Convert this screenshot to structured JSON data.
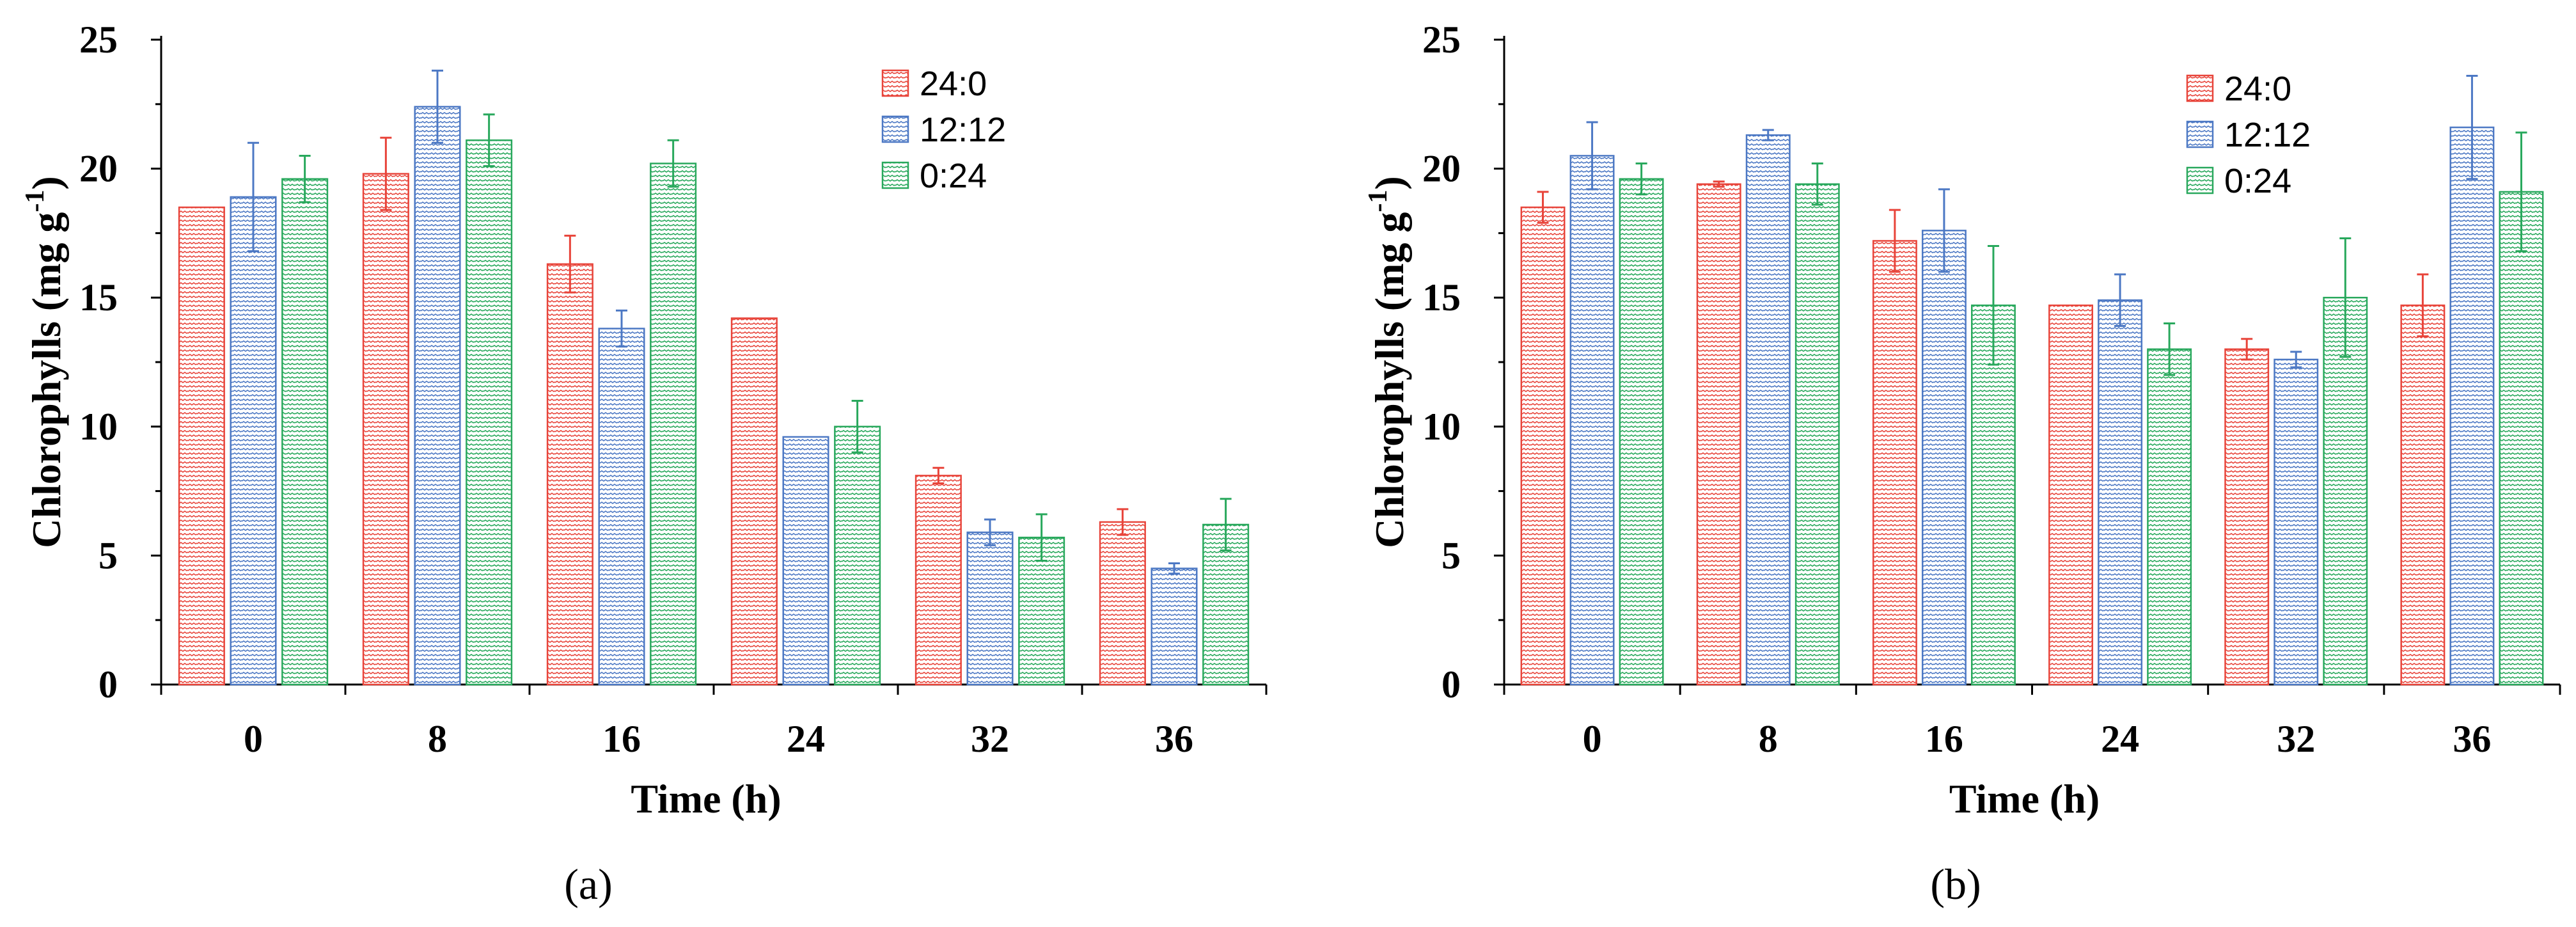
{
  "colors": {
    "24:0": "#e8443a",
    "12:12": "#4c78c4",
    "0:24": "#28a85c"
  },
  "chart_data": [
    {
      "type": "bar",
      "panel_label": "(a)",
      "xlabel": "Time (h)",
      "ylabel_main": "Chlorophylls (mg g",
      "ylabel_sup": "-1",
      "ylabel_close": ")",
      "ylim": [
        0,
        25
      ],
      "yticks": [
        0,
        5,
        10,
        15,
        20,
        25
      ],
      "categories": [
        "0",
        "8",
        "16",
        "24",
        "32",
        "36"
      ],
      "legend_position": "top-right",
      "series": [
        {
          "name": "24:0",
          "values": [
            18.5,
            19.8,
            16.3,
            14.2,
            8.1,
            6.3
          ],
          "errors": [
            0,
            1.4,
            1.1,
            0,
            0.3,
            0.5
          ]
        },
        {
          "name": "12:12",
          "values": [
            18.9,
            22.4,
            13.8,
            9.6,
            5.9,
            4.5
          ],
          "errors": [
            2.1,
            1.4,
            0.7,
            0,
            0.5,
            0.2
          ]
        },
        {
          "name": "0:24",
          "values": [
            19.6,
            21.1,
            20.2,
            10.0,
            5.7,
            6.2
          ],
          "errors": [
            0.9,
            1.0,
            0.9,
            1.0,
            0.9,
            1.0
          ]
        }
      ]
    },
    {
      "type": "bar",
      "panel_label": "(b)",
      "xlabel": "Time (h)",
      "ylabel_main": "Chlorophylls (mg g",
      "ylabel_sup": "-1",
      "ylabel_close": ")",
      "ylim": [
        0,
        25
      ],
      "yticks": [
        0,
        5,
        10,
        15,
        20,
        25
      ],
      "categories": [
        "0",
        "8",
        "16",
        "24",
        "32",
        "36"
      ],
      "legend_position": "top-right",
      "series": [
        {
          "name": "24:0",
          "values": [
            18.5,
            19.4,
            17.2,
            14.7,
            13.0,
            14.7
          ],
          "errors": [
            0.6,
            0.1,
            1.2,
            0,
            0.4,
            1.2
          ]
        },
        {
          "name": "12:12",
          "values": [
            20.5,
            21.3,
            17.6,
            14.9,
            12.6,
            21.6
          ],
          "errors": [
            1.3,
            0.2,
            1.6,
            1.0,
            0.3,
            2.0
          ]
        },
        {
          "name": "0:24",
          "values": [
            19.6,
            19.4,
            14.7,
            13.0,
            15.0,
            19.1
          ],
          "errors": [
            0.6,
            0.8,
            2.3,
            1.0,
            2.3,
            2.3
          ]
        }
      ]
    }
  ]
}
